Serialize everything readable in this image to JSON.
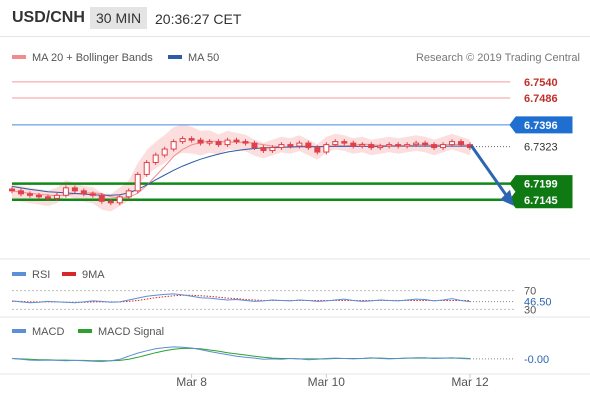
{
  "header": {
    "symbol": "USD/CNH",
    "interval": "30 MIN",
    "time": "20:36:27 CET"
  },
  "colors": {
    "ma20": "#f28c8c",
    "ma50": "#2c5ea8",
    "band_fill": "#fcd8d8",
    "candle": "#e0404a",
    "resistance": "#f49a9a",
    "pivot": "#4a86e0",
    "support": "#0f8a16",
    "arrow": "#2c66b0",
    "rsi": "#5b8fd6",
    "rsi_ma": "#d62828",
    "macd": "#5b8fd6",
    "macd_signal": "#2ea02e"
  },
  "chart_data": [
    {
      "type": "line",
      "panel": "price",
      "legend": [
        {
          "name": "MA 20 + Bollinger Bands",
          "color": "#f28c8c"
        },
        {
          "name": "MA 50",
          "color": "#2c5ea8"
        }
      ],
      "source": "Research © 2019 Trading Central",
      "ylim": [
        6.695,
        6.76
      ],
      "x_ticks": [
        {
          "label": "Mar 8",
          "x": 20
        },
        {
          "label": "Mar 10",
          "x": 35
        },
        {
          "label": "Mar 12",
          "x": 51
        }
      ],
      "levels": [
        {
          "label": "6.7540",
          "value": 6.754,
          "kind": "resistance"
        },
        {
          "label": "6.7486",
          "value": 6.7486,
          "kind": "resistance"
        },
        {
          "label": "6.7396",
          "value": 6.7396,
          "kind": "pivot"
        },
        {
          "label": "6.7323",
          "value": 6.7323,
          "kind": "last"
        },
        {
          "label": "6.7199",
          "value": 6.7199,
          "kind": "support"
        },
        {
          "label": "6.7145",
          "value": 6.7145,
          "kind": "support"
        }
      ],
      "price": [
        6.7175,
        6.7165,
        6.716,
        6.7155,
        6.715,
        6.716,
        6.7185,
        6.7175,
        6.7165,
        6.716,
        6.714,
        6.7135,
        6.7155,
        6.7175,
        6.723,
        6.727,
        6.7295,
        6.7315,
        6.734,
        6.735,
        6.7345,
        6.7335,
        6.734,
        6.733,
        6.7345,
        6.734,
        6.7335,
        6.732,
        6.731,
        6.732,
        6.733,
        6.7325,
        6.7335,
        6.732,
        6.7305,
        6.733,
        6.734,
        6.7335,
        6.7325,
        6.733,
        6.732,
        6.7325,
        6.733,
        6.7325,
        6.733,
        6.7335,
        6.733,
        6.732,
        6.733,
        6.734,
        6.733,
        6.732
      ],
      "ma50": [
        6.719,
        6.7185,
        6.718,
        6.7176,
        6.7172,
        6.717,
        6.7168,
        6.7166,
        6.7164,
        6.7162,
        6.716,
        6.716,
        6.7162,
        6.7168,
        6.718,
        6.7195,
        6.7212,
        6.7228,
        6.7244,
        6.7258,
        6.727,
        6.7281,
        6.729,
        6.7298,
        6.7305,
        6.731,
        6.7314,
        6.7317,
        6.7319,
        6.732,
        6.7321,
        6.7322,
        6.7323,
        6.7323,
        6.7323,
        6.7324,
        6.7324,
        6.7324,
        6.7324,
        6.7324,
        6.7324,
        6.7324,
        6.7325,
        6.7325,
        6.7325,
        6.7325,
        6.7325,
        6.7325,
        6.7325,
        6.7325,
        6.7325,
        6.7325
      ],
      "forecast": {
        "from": 6.7323,
        "to": 6.7145
      }
    },
    {
      "type": "line",
      "panel": "rsi",
      "legend": [
        {
          "name": "RSI",
          "color": "#5b8fd6"
        },
        {
          "name": "9MA",
          "color": "#d62828"
        }
      ],
      "ylim": [
        20,
        80
      ],
      "levels": [
        {
          "label": "70",
          "value": 70
        },
        {
          "label": "30",
          "value": 30
        }
      ],
      "current_label": "46.50",
      "rsi": [
        48,
        46,
        44,
        45,
        47,
        46,
        45,
        44,
        46,
        48,
        47,
        45,
        46,
        50,
        54,
        58,
        60,
        62,
        63,
        61,
        58,
        55,
        54,
        52,
        50,
        51,
        49,
        47,
        48,
        50,
        49,
        48,
        50,
        49,
        47,
        48,
        50,
        52,
        49,
        47,
        48,
        50,
        49,
        48,
        50,
        52,
        51,
        48,
        50,
        53,
        49,
        46.5
      ],
      "rsi_ma": [
        47,
        47,
        46,
        46,
        46,
        46,
        45,
        45,
        45,
        46,
        46,
        46,
        46,
        47,
        49,
        52,
        55,
        57,
        59,
        60,
        60,
        59,
        58,
        56,
        54,
        53,
        51,
        50,
        49,
        49,
        49,
        49,
        49,
        49,
        49,
        49,
        49,
        49,
        49,
        49,
        49,
        49,
        49,
        49,
        49,
        49,
        49,
        49,
        49,
        49,
        49,
        49
      ]
    },
    {
      "type": "line",
      "panel": "macd",
      "legend": [
        {
          "name": "MACD",
          "color": "#5b8fd6"
        },
        {
          "name": "MACD Signal",
          "color": "#2ea02e"
        }
      ],
      "ylim": [
        -0.004,
        0.004
      ],
      "current_label": "-0.00",
      "macd": [
        0.0,
        -0.0002,
        -0.0004,
        -0.0005,
        -0.0004,
        -0.0005,
        -0.0006,
        -0.0005,
        -0.0006,
        -0.0007,
        -0.0008,
        -0.0006,
        -0.0002,
        0.0006,
        0.0014,
        0.002,
        0.0025,
        0.0028,
        0.003,
        0.0029,
        0.0027,
        0.0023,
        0.0018,
        0.0014,
        0.001,
        0.0006,
        0.0003,
        0.0001,
        -0.0002,
        -0.0001,
        -0.0002,
        0.0,
        -0.0001,
        -0.0003,
        -0.0002,
        0.0,
        0.0001,
        0.0,
        -0.0001,
        0.0,
        0.0002,
        0.0,
        -0.0001,
        0.0,
        0.0001,
        0.0002,
        0.0002,
        0.0,
        0.0001,
        0.0002,
        0.0,
        -0.0001
      ],
      "macd_signal": [
        0.0,
        -0.0001,
        -0.0002,
        -0.0003,
        -0.0003,
        -0.0004,
        -0.0004,
        -0.0005,
        -0.0005,
        -0.0006,
        -0.0006,
        -0.0006,
        -0.0005,
        -0.0002,
        0.0003,
        0.0009,
        0.0015,
        0.002,
        0.0024,
        0.0026,
        0.0026,
        0.0025,
        0.0022,
        0.0019,
        0.0015,
        0.0012,
        0.0009,
        0.0006,
        0.0003,
        0.0001,
        0.0,
        0.0,
        -0.0001,
        -0.0001,
        -0.0001,
        -0.0001,
        0.0,
        0.0,
        0.0,
        0.0,
        0.0001,
        0.0001,
        0.0,
        0.0,
        0.0001,
        0.0001,
        0.0001,
        0.0001,
        0.0001,
        0.0001,
        0.0001,
        0.0
      ]
    }
  ]
}
